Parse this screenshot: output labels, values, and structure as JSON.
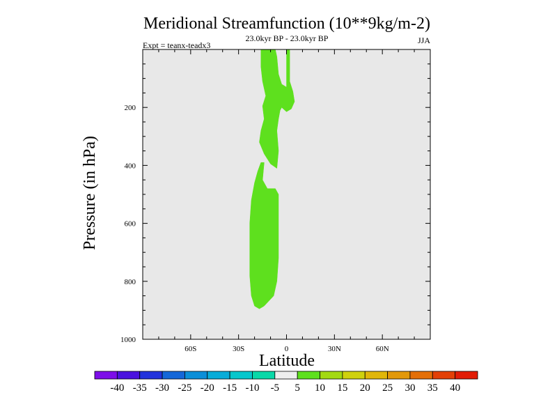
{
  "chart_data": {
    "type": "contour",
    "title": "Meridional Streamfunction (10**9kg/m-2)",
    "subtitle": "23.0kyr BP - 23.0kyr BP",
    "left_label": "Expt = teanx-teadx3",
    "right_label": "JJA",
    "xlabel": "Latitude",
    "ylabel": "Pressure (in hPa)",
    "xlim": [
      -90,
      90
    ],
    "ylim": [
      1000,
      0
    ],
    "x_ticks": [
      {
        "value": -60,
        "label": "60S"
      },
      {
        "value": -30,
        "label": "30S"
      },
      {
        "value": 0,
        "label": "0"
      },
      {
        "value": 30,
        "label": "30N"
      },
      {
        "value": 60,
        "label": "60N"
      }
    ],
    "y_ticks": [
      {
        "value": 200,
        "label": "200"
      },
      {
        "value": 400,
        "label": "400"
      },
      {
        "value": 600,
        "label": "600"
      },
      {
        "value": 800,
        "label": "800"
      },
      {
        "value": 1000,
        "label": "1000"
      }
    ],
    "background_color": "#e8e8e8",
    "contour_regions": [
      {
        "name": "upper-positive-region",
        "level_range": [
          5,
          10
        ],
        "color": "#5ee01e",
        "points": [
          [
            -16,
            0
          ],
          [
            -7,
            0
          ],
          [
            -6,
            25
          ],
          [
            -5,
            85
          ],
          [
            -3,
            120
          ],
          [
            0,
            130
          ],
          [
            0,
            0
          ],
          [
            2,
            0
          ],
          [
            2,
            110
          ],
          [
            4,
            145
          ],
          [
            5,
            180
          ],
          [
            3,
            205
          ],
          [
            0,
            215
          ],
          [
            -3,
            200
          ],
          [
            -4,
            210
          ],
          [
            -5,
            240
          ],
          [
            -6,
            280
          ],
          [
            -5,
            350
          ],
          [
            -6,
            410
          ],
          [
            -10,
            395
          ],
          [
            -14,
            360
          ],
          [
            -17,
            320
          ],
          [
            -16,
            280
          ],
          [
            -14,
            240
          ],
          [
            -15,
            195
          ],
          [
            -13,
            160
          ],
          [
            -15,
            110
          ],
          [
            -16,
            60
          ]
        ]
      },
      {
        "name": "lower-positive-region",
        "level_range": [
          5,
          10
        ],
        "color": "#5ee01e",
        "points": [
          [
            -16,
            390
          ],
          [
            -14,
            390
          ],
          [
            -15,
            450
          ],
          [
            -12,
            480
          ],
          [
            -7,
            480
          ],
          [
            -5,
            500
          ],
          [
            -5,
            600
          ],
          [
            -5,
            650
          ],
          [
            -5,
            720
          ],
          [
            -6,
            800
          ],
          [
            -8,
            850
          ],
          [
            -14,
            885
          ],
          [
            -17,
            895
          ],
          [
            -20,
            885
          ],
          [
            -22,
            850
          ],
          [
            -23,
            780
          ],
          [
            -23,
            700
          ],
          [
            -23,
            600
          ],
          [
            -22,
            520
          ],
          [
            -20,
            460
          ],
          [
            -18,
            420
          ]
        ]
      }
    ],
    "colorbar": {
      "labels": [
        "-40",
        "-35",
        "-30",
        "-25",
        "-20",
        "-15",
        "-10",
        "-5",
        "5",
        "10",
        "15",
        "20",
        "25",
        "30",
        "35",
        "40"
      ],
      "colors": [
        "#7d0ee8",
        "#4b12de",
        "#2233dc",
        "#1467d8",
        "#0b8fd8",
        "#08acd8",
        "#06c7cc",
        "#09d8a8",
        "#eeeeee",
        "#5ee01e",
        "#a3d912",
        "#cfd10e",
        "#e0b60a",
        "#e29809",
        "#e46f07",
        "#e34006",
        "#e21c06"
      ]
    }
  }
}
